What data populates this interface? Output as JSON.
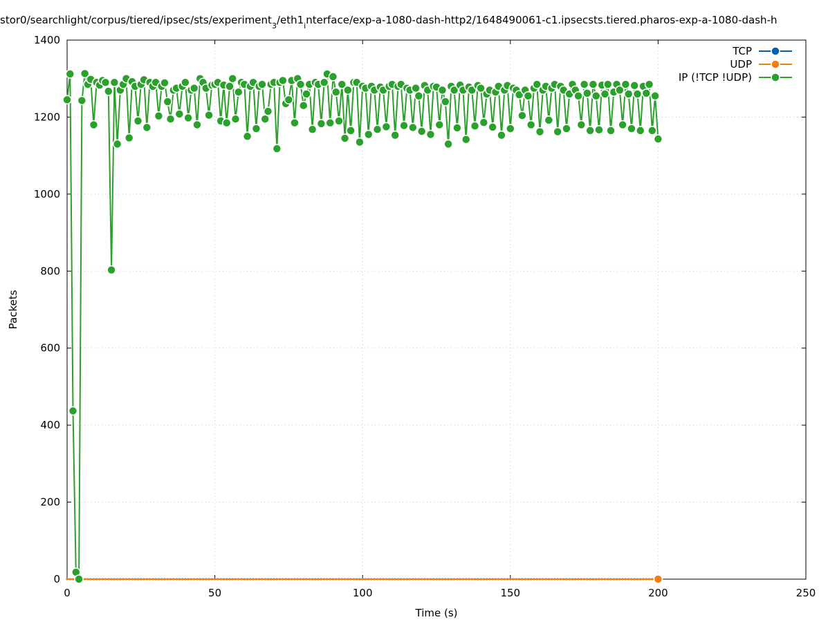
{
  "chart_data": {
    "type": "line",
    "title": [
      "stor0/searchlight/corpus/tiered/ipsec/sts/experiment",
      "3",
      "/eth1",
      "i",
      "nterface/exp-a-1080-dash-http2/1648490061-c1.ipsecsts.tiered.pharos-exp-a-1080-dash-h"
    ],
    "xlabel": "Time (s)",
    "ylabel": "Packets",
    "xlim": [
      0,
      250
    ],
    "xticks": [
      0,
      50,
      100,
      150,
      200,
      250
    ],
    "ylim": [
      0,
      1400
    ],
    "yticks": [
      0,
      200,
      400,
      600,
      800,
      1000,
      1200,
      1400
    ],
    "grid": true,
    "legend": "top-right",
    "x": [
      0,
      1,
      2,
      3,
      4,
      5,
      6,
      7,
      8,
      9,
      10,
      11,
      12,
      13,
      14,
      15,
      16,
      17,
      18,
      19,
      20,
      21,
      22,
      23,
      24,
      25,
      26,
      27,
      28,
      29,
      30,
      31,
      32,
      33,
      34,
      35,
      36,
      37,
      38,
      39,
      40,
      41,
      42,
      43,
      44,
      45,
      46,
      47,
      48,
      49,
      50,
      51,
      52,
      53,
      54,
      55,
      56,
      57,
      58,
      59,
      60,
      61,
      62,
      63,
      64,
      65,
      66,
      67,
      68,
      69,
      70,
      71,
      72,
      73,
      74,
      75,
      76,
      77,
      78,
      79,
      80,
      81,
      82,
      83,
      84,
      85,
      86,
      87,
      88,
      89,
      90,
      91,
      92,
      93,
      94,
      95,
      96,
      97,
      98,
      99,
      100,
      101,
      102,
      103,
      104,
      105,
      106,
      107,
      108,
      109,
      110,
      111,
      112,
      113,
      114,
      115,
      116,
      117,
      118,
      119,
      120,
      121,
      122,
      123,
      124,
      125,
      126,
      127,
      128,
      129,
      130,
      131,
      132,
      133,
      134,
      135,
      136,
      137,
      138,
      139,
      140,
      141,
      142,
      143,
      144,
      145,
      146,
      147,
      148,
      149,
      150,
      151,
      152,
      153,
      154,
      155,
      156,
      157,
      158,
      159,
      160,
      161,
      162,
      163,
      164,
      165,
      166,
      167,
      168,
      169,
      170,
      171,
      172,
      173,
      174,
      175,
      176,
      177,
      178,
      179,
      180,
      181,
      182,
      183,
      184,
      185,
      186,
      187,
      188,
      189,
      190,
      191,
      192,
      193,
      194,
      195,
      196,
      197,
      198,
      199,
      200
    ],
    "series": [
      {
        "name": "TCP",
        "color": "#0060ad",
        "values": [
          0,
          0,
          0,
          0,
          0,
          0,
          0,
          0,
          0,
          0,
          0,
          0,
          0,
          0,
          0,
          0,
          0,
          0,
          0,
          0,
          0,
          0,
          0,
          0,
          0,
          0,
          0,
          0,
          0,
          0,
          0,
          0,
          0,
          0,
          0,
          0,
          0,
          0,
          0,
          0,
          0,
          0,
          0,
          0,
          0,
          0,
          0,
          0,
          0,
          0,
          0,
          0,
          0,
          0,
          0,
          0,
          0,
          0,
          0,
          0,
          0,
          0,
          0,
          0,
          0,
          0,
          0,
          0,
          0,
          0,
          0,
          0,
          0,
          0,
          0,
          0,
          0,
          0,
          0,
          0,
          0,
          0,
          0,
          0,
          0,
          0,
          0,
          0,
          0,
          0,
          0,
          0,
          0,
          0,
          0,
          0,
          0,
          0,
          0,
          0,
          0,
          0,
          0,
          0,
          0,
          0,
          0,
          0,
          0,
          0,
          0,
          0,
          0,
          0,
          0,
          0,
          0,
          0,
          0,
          0,
          0,
          0,
          0,
          0,
          0,
          0,
          0,
          0,
          0,
          0,
          0,
          0,
          0,
          0,
          0,
          0,
          0,
          0,
          0,
          0,
          0,
          0,
          0,
          0,
          0,
          0,
          0,
          0,
          0,
          0,
          0,
          0,
          0,
          0,
          0,
          0,
          0,
          0,
          0,
          0,
          0,
          0,
          0,
          0,
          0,
          0,
          0,
          0,
          0,
          0,
          0,
          0,
          0,
          0,
          0,
          0,
          0,
          0,
          0,
          0,
          0,
          0,
          0,
          0,
          0,
          0,
          0,
          0,
          0,
          0,
          0,
          0,
          0,
          0,
          0,
          0,
          0,
          0,
          0,
          0,
          0
        ]
      },
      {
        "name": "UDP",
        "color": "#f07f0f",
        "values": [
          0,
          0,
          0,
          0,
          0,
          0,
          0,
          0,
          0,
          0,
          0,
          0,
          0,
          0,
          0,
          0,
          0,
          0,
          0,
          0,
          0,
          0,
          0,
          0,
          0,
          0,
          0,
          0,
          0,
          0,
          0,
          0,
          0,
          0,
          0,
          0,
          0,
          0,
          0,
          0,
          0,
          0,
          0,
          0,
          0,
          0,
          0,
          0,
          0,
          0,
          0,
          0,
          0,
          0,
          0,
          0,
          0,
          0,
          0,
          0,
          0,
          0,
          0,
          0,
          0,
          0,
          0,
          0,
          0,
          0,
          0,
          0,
          0,
          0,
          0,
          0,
          0,
          0,
          0,
          0,
          0,
          0,
          0,
          0,
          0,
          0,
          0,
          0,
          0,
          0,
          0,
          0,
          0,
          0,
          0,
          0,
          0,
          0,
          0,
          0,
          0,
          0,
          0,
          0,
          0,
          0,
          0,
          0,
          0,
          0,
          0,
          0,
          0,
          0,
          0,
          0,
          0,
          0,
          0,
          0,
          0,
          0,
          0,
          0,
          0,
          0,
          0,
          0,
          0,
          0,
          0,
          0,
          0,
          0,
          0,
          0,
          0,
          0,
          0,
          0,
          0,
          0,
          0,
          0,
          0,
          0,
          0,
          0,
          0,
          0,
          0,
          0,
          0,
          0,
          0,
          0,
          0,
          0,
          0,
          0,
          0,
          0,
          0,
          0,
          0,
          0,
          0,
          0,
          0,
          0,
          0,
          0,
          0,
          0,
          0,
          0,
          0,
          0,
          0,
          0,
          0,
          0,
          0,
          0,
          0,
          0,
          0,
          0,
          0,
          0,
          0,
          0,
          0,
          0,
          0,
          0,
          0,
          0,
          0,
          0,
          0
        ]
      },
      {
        "name": "IP (!TCP  !UDP)",
        "color": "#2ca02c",
        "values": [
          1245,
          1312,
          437,
          18,
          0,
          1243,
          1313,
          1285,
          1298,
          1180,
          1290,
          1283,
          1295,
          1290,
          1267,
          803,
          1290,
          1130,
          1270,
          1285,
          1300,
          1146,
          1292,
          1280,
          1190,
          1285,
          1297,
          1173,
          1290,
          1280,
          1290,
          1203,
          1280,
          1289,
          1240,
          1195,
          1270,
          1275,
          1208,
          1280,
          1290,
          1198,
          1270,
          1275,
          1180,
          1300,
          1290,
          1275,
          1205,
          1283,
          1285,
          1290,
          1190,
          1283,
          1185,
          1280,
          1300,
          1195,
          1265,
          1290,
          1285,
          1150,
          1280,
          1290,
          1170,
          1280,
          1285,
          1195,
          1215,
          1285,
          1290,
          1118,
          1290,
          1295,
          1235,
          1245,
          1295,
          1185,
          1300,
          1285,
          1230,
          1260,
          1285,
          1168,
          1290,
          1285,
          1183,
          1290,
          1312,
          1185,
          1305,
          1265,
          1190,
          1285,
          1145,
          1270,
          1165,
          1290,
          1290,
          1135,
          1280,
          1275,
          1155,
          1280,
          1270,
          1168,
          1278,
          1270,
          1175,
          1280,
          1285,
          1153,
          1280,
          1285,
          1178,
          1275,
          1270,
          1173,
          1275,
          1255,
          1163,
          1282,
          1270,
          1155,
          1280,
          1278,
          1180,
          1270,
          1240,
          1130,
          1280,
          1270,
          1172,
          1283,
          1270,
          1142,
          1278,
          1270,
          1177,
          1282,
          1275,
          1186,
          1260,
          1270,
          1174,
          1265,
          1280,
          1153,
          1270,
          1282,
          1170,
          1275,
          1270,
          1258,
          1204,
          1270,
          1255,
          1180,
          1275,
          1285,
          1162,
          1270,
          1280,
          1192,
          1275,
          1285,
          1162,
          1280,
          1270,
          1170,
          1260,
          1285,
          1270,
          1255,
          1180,
          1285,
          1262,
          1165,
          1285,
          1255,
          1167,
          1283,
          1260,
          1285,
          1165,
          1265,
          1285,
          1270,
          1180,
          1285,
          1260,
          1170,
          1282,
          1260,
          1165,
          1280,
          1262,
          1285,
          1165,
          1255,
          1143
        ]
      }
    ]
  }
}
